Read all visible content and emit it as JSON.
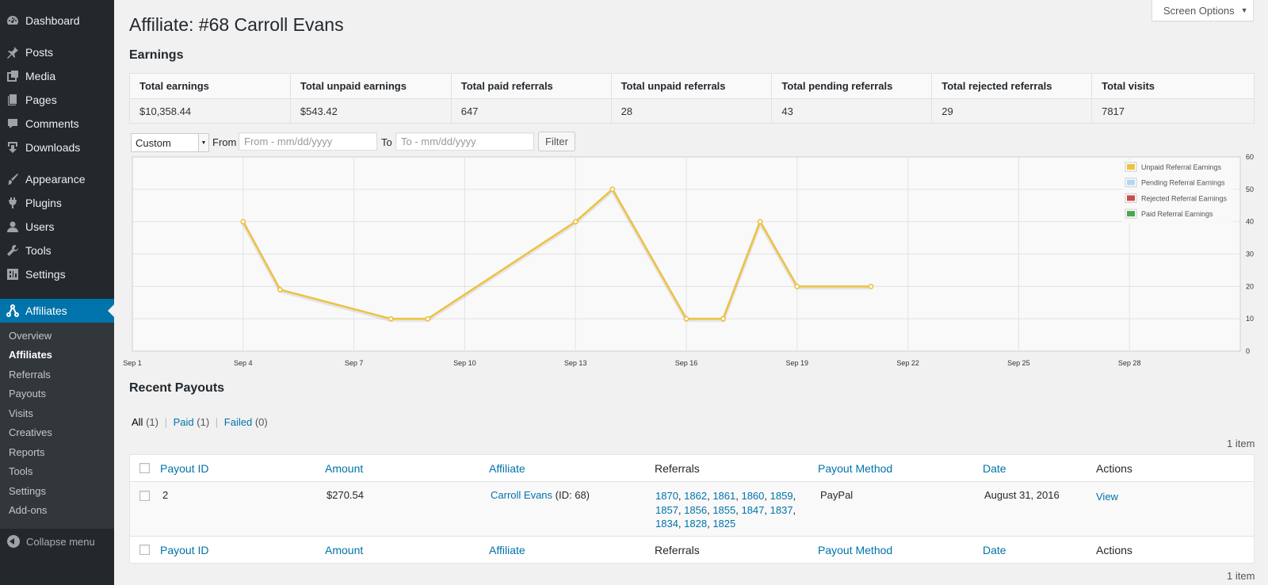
{
  "sidebar": {
    "items": [
      {
        "label": "Dashboard",
        "icon": "dashboard-icon"
      },
      {
        "label": "Posts",
        "icon": "pin-icon"
      },
      {
        "label": "Media",
        "icon": "media-icon"
      },
      {
        "label": "Pages",
        "icon": "pages-icon"
      },
      {
        "label": "Comments",
        "icon": "comments-icon"
      },
      {
        "label": "Downloads",
        "icon": "download-icon"
      },
      {
        "label": "Appearance",
        "icon": "brush-icon"
      },
      {
        "label": "Plugins",
        "icon": "plugin-icon"
      },
      {
        "label": "Users",
        "icon": "user-icon"
      },
      {
        "label": "Tools",
        "icon": "wrench-icon"
      },
      {
        "label": "Settings",
        "icon": "settings-icon"
      },
      {
        "label": "Affiliates",
        "icon": "affiliates-icon"
      }
    ],
    "submenu": [
      "Overview",
      "Affiliates",
      "Referrals",
      "Payouts",
      "Visits",
      "Creatives",
      "Reports",
      "Tools",
      "Settings",
      "Add-ons"
    ],
    "collapse_label": "Collapse menu"
  },
  "screen_options": "Screen Options",
  "page_title": "Affiliate: #68 Carroll Evans",
  "earnings": {
    "title": "Earnings",
    "headers": [
      "Total earnings",
      "Total unpaid earnings",
      "Total paid referrals",
      "Total unpaid referrals",
      "Total pending referrals",
      "Total rejected referrals",
      "Total visits"
    ],
    "values": [
      "$10,358.44",
      "$543.42",
      "647",
      "28",
      "43",
      "29",
      "7817"
    ]
  },
  "filter": {
    "range_value": "Custom",
    "from_label": "From",
    "from_placeholder": "From - mm/dd/yyyy",
    "to_label": "To",
    "to_placeholder": "To - mm/dd/yyyy",
    "button": "Filter"
  },
  "chart_data": {
    "type": "line",
    "x_ticks": [
      "Sep 1",
      "Sep 4",
      "Sep 7",
      "Sep 10",
      "Sep 13",
      "Sep 16",
      "Sep 19",
      "Sep 22",
      "Sep 25",
      "Sep 28"
    ],
    "xlim": [
      1,
      31
    ],
    "ylim": [
      0,
      60
    ],
    "y_ticks": [
      "0",
      "10",
      "20",
      "30",
      "40",
      "50",
      "60"
    ],
    "grid": true,
    "legend_position": "top-right",
    "legend": [
      {
        "name": "Unpaid Referral Earnings",
        "color": "#edc240"
      },
      {
        "name": "Pending Referral Earnings",
        "color": "#afd8f8"
      },
      {
        "name": "Rejected Referral Earnings",
        "color": "#cb4b4b"
      },
      {
        "name": "Paid Referral Earnings",
        "color": "#4da74d"
      }
    ],
    "series": [
      {
        "name": "Unpaid Referral Earnings",
        "color": "#edc240",
        "x": [
          4,
          5,
          8,
          9,
          13,
          14,
          16,
          17,
          18,
          19,
          21
        ],
        "y": [
          40,
          19,
          10,
          10,
          40,
          50,
          10,
          10,
          40,
          20,
          20
        ]
      }
    ]
  },
  "payouts": {
    "title": "Recent Payouts",
    "views": [
      {
        "label": "All",
        "count": "(1)"
      },
      {
        "label": "Paid",
        "count": "(1)"
      },
      {
        "label": "Failed",
        "count": "(0)"
      }
    ],
    "items_count": "1 item",
    "columns": [
      "Payout ID",
      "Amount",
      "Affiliate",
      "Referrals",
      "Payout Method",
      "Date",
      "Actions"
    ],
    "rows": [
      {
        "id": "2",
        "amount": "$270.54",
        "affiliate_name": "Carroll Evans",
        "affiliate_id": "(ID: 68)",
        "referrals": [
          "1870",
          "1862",
          "1861",
          "1860",
          "1859",
          "1857",
          "1856",
          "1855",
          "1847",
          "1837",
          "1834",
          "1828",
          "1825"
        ],
        "method": "PayPal",
        "date": "August 31, 2016",
        "action": "View"
      }
    ]
  }
}
